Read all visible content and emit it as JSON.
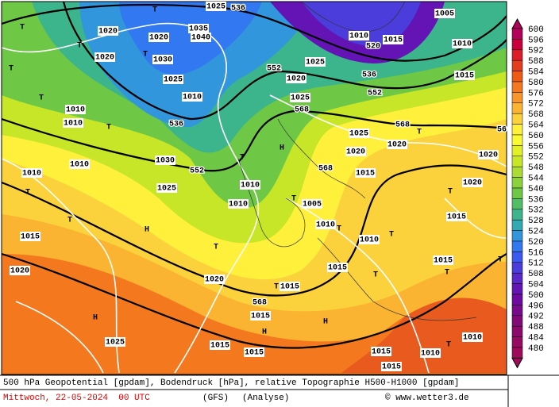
{
  "legend": {
    "values": [
      600,
      596,
      592,
      588,
      584,
      580,
      576,
      572,
      568,
      564,
      560,
      556,
      552,
      548,
      544,
      540,
      536,
      532,
      528,
      524,
      520,
      516,
      512,
      508,
      504,
      500,
      496,
      492,
      488,
      484,
      480
    ],
    "colors": [
      "#b4005a",
      "#c8003c",
      "#dc1e28",
      "#e63c1e",
      "#ee5a14",
      "#f4781e",
      "#f8962a",
      "#fab432",
      "#fcd23c",
      "#fff03c",
      "#fafa32",
      "#e2f028",
      "#c8e628",
      "#aadc32",
      "#8cd23c",
      "#6ec846",
      "#50be64",
      "#3cb48c",
      "#32aab4",
      "#3296dc",
      "#3278f0",
      "#3c5af0",
      "#4b3cdc",
      "#5a28c8",
      "#6414b4",
      "#6e0aa0",
      "#780a8c",
      "#820a78",
      "#8c0a6e",
      "#960a64",
      "#a00a5a"
    ]
  },
  "map_labels": [
    "536",
    "520",
    "536",
    "552",
    "552",
    "536",
    "568",
    "568",
    "552",
    "568",
    "568",
    "56",
    "H",
    "H",
    "H",
    "H",
    "H",
    "T",
    "T",
    "T",
    "T",
    "T",
    "T",
    "T",
    "T",
    "T",
    "T",
    "T",
    "T",
    "T",
    "T",
    "T",
    "T",
    "T",
    "T",
    "T",
    "T",
    "T",
    "1025",
    "1020",
    "1020",
    "1020",
    "1010",
    "1010",
    "1030",
    "1025",
    "1010",
    "1010",
    "1015",
    "1020",
    "1025",
    "1020",
    "1015",
    "1015",
    "1015",
    "1015",
    "1010",
    "1005",
    "1010",
    "1010",
    "1015",
    "1015",
    "1015",
    "1010",
    "1010",
    "1015",
    "1015",
    "1020",
    "1020",
    "1015",
    "1010",
    "1005",
    "1010",
    "1015",
    "1025",
    "1020",
    "1025",
    "1025",
    "1020",
    "1020",
    "1015",
    "1010",
    "1040",
    "1035",
    "1030",
    "1025",
    "1010"
  ],
  "footer": {
    "description": "500 hPa Geopotential [gpdam], Bodendruck [hPa], relative Topographie H500-H1000 [gpdam]",
    "date": "Mittwoch, 22-05-2024  00 UTC",
    "model": "(GFS)",
    "run": "(Analyse)",
    "credit": "© www.wetter3.de"
  }
}
